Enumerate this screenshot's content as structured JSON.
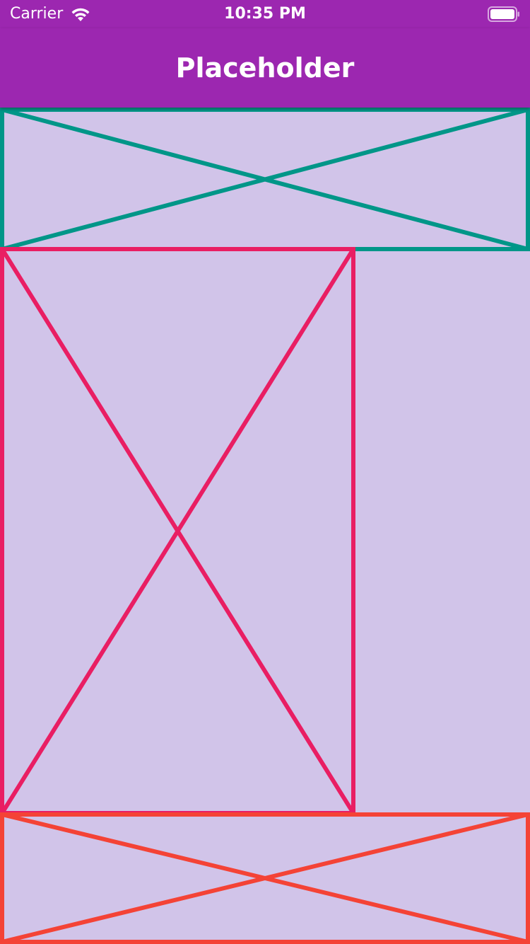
{
  "status_bar": {
    "carrier": "Carrier",
    "time": "10:35 PM",
    "icons": [
      "wifi-icon",
      "battery-icon"
    ]
  },
  "app_bar": {
    "title": "Placeholder",
    "background_color": "#9c27b0"
  },
  "page": {
    "background_color": "#d1c4e9"
  },
  "placeholders": [
    {
      "name": "top-placeholder",
      "color": "#009688"
    },
    {
      "name": "middle-placeholder",
      "color": "#e91e63"
    },
    {
      "name": "bottom-placeholder",
      "color": "#f44336"
    }
  ]
}
